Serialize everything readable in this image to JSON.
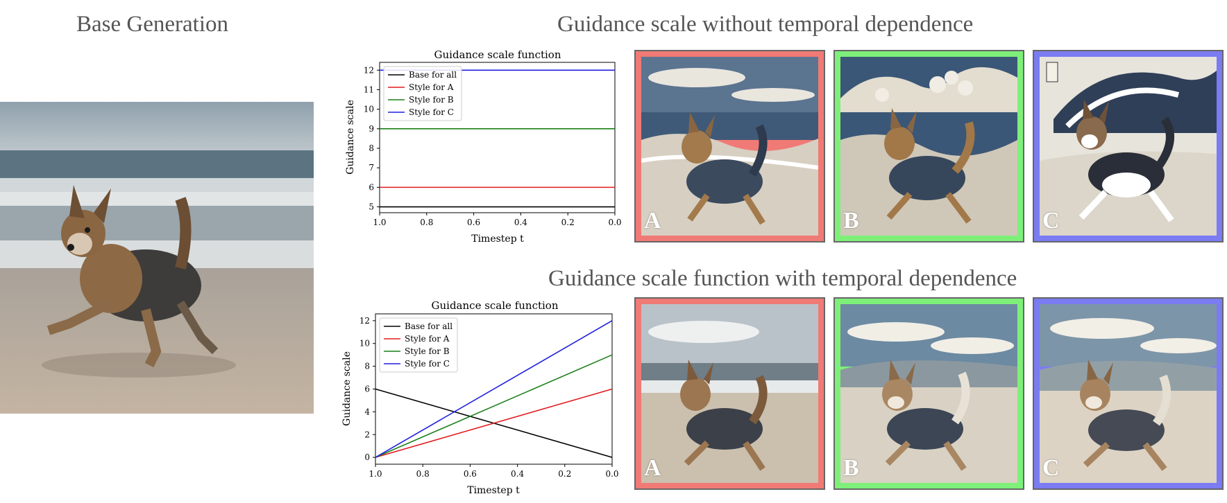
{
  "headings": {
    "base": "Base Generation",
    "top": "Guidance scale without temporal dependence",
    "bottom": "Guidance scale function with temporal dependence"
  },
  "frame_letters": [
    "A",
    "B",
    "C"
  ],
  "colors": {
    "frame_a": "#f07a75",
    "frame_b": "#7ef07a",
    "frame_c": "#7b7bf2"
  },
  "chart_data": [
    {
      "type": "line",
      "title": "Guidance scale function",
      "xlabel": "Timestep t",
      "ylabel": "Guidance scale",
      "x": [
        1.0,
        0.0
      ],
      "xlim": [
        1.0,
        0.0
      ],
      "ylim": [
        4.7,
        12.4
      ],
      "xticks": [
        1.0,
        0.8,
        0.6,
        0.4,
        0.2,
        0.0
      ],
      "xtick_labels": [
        "1.0",
        "0.8",
        "0.6",
        "0.4",
        "0.2",
        "0.0"
      ],
      "yticks": [
        5,
        6,
        7,
        8,
        9,
        10,
        11,
        12
      ],
      "legend": "top-left",
      "series": [
        {
          "name": "Base for all",
          "color": "#000000",
          "values": [
            5,
            5
          ]
        },
        {
          "name": "Style for A",
          "color": "#e31a1c",
          "values": [
            6,
            6
          ]
        },
        {
          "name": "Style for B",
          "color": "#1a7f1a",
          "values": [
            9,
            9
          ]
        },
        {
          "name": "Style for C",
          "color": "#1f1fe0",
          "values": [
            12,
            12
          ]
        }
      ]
    },
    {
      "type": "line",
      "title": "Guidance scale function",
      "xlabel": "Timestep t",
      "ylabel": "Guidance scale",
      "x": [
        1.0,
        0.0
      ],
      "xlim": [
        1.0,
        0.0
      ],
      "ylim": [
        -0.6,
        12.6
      ],
      "xticks": [
        1.0,
        0.8,
        0.6,
        0.4,
        0.2,
        0.0
      ],
      "xtick_labels": [
        "1.0",
        "0.8",
        "0.6",
        "0.4",
        "0.2",
        "0.0"
      ],
      "yticks": [
        0,
        2,
        4,
        6,
        8,
        10,
        12
      ],
      "legend": "top-left",
      "series": [
        {
          "name": "Base for all",
          "color": "#000000",
          "values": [
            6,
            0
          ]
        },
        {
          "name": "Style for A",
          "color": "#e31a1c",
          "values": [
            0,
            6
          ]
        },
        {
          "name": "Style for B",
          "color": "#1a7f1a",
          "values": [
            0,
            9
          ]
        },
        {
          "name": "Style for C",
          "color": "#1f1fe0",
          "values": [
            0,
            12
          ]
        }
      ]
    }
  ]
}
